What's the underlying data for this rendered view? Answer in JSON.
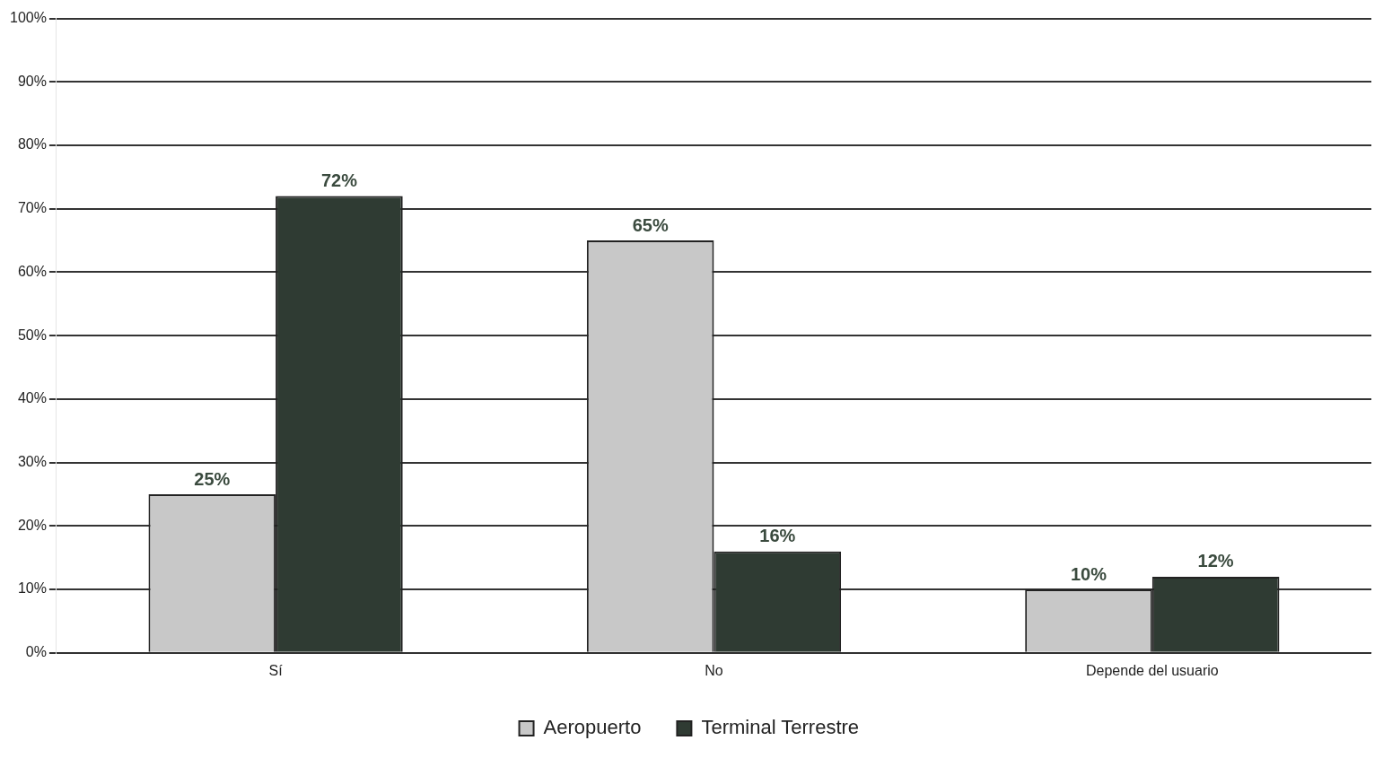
{
  "chart_data": {
    "type": "bar",
    "categories": [
      "Sí",
      "No",
      "Depende del usuario"
    ],
    "series": [
      {
        "name": "Aeropuerto",
        "color": "#c8c8c8",
        "values": [
          25,
          65,
          10
        ],
        "value_labels": [
          "25%",
          "65%",
          "10%"
        ]
      },
      {
        "name": "Terminal Terrestre",
        "color": "#2f3b33",
        "values": [
          72,
          16,
          12
        ],
        "value_labels": [
          "72%",
          "16%",
          "12%"
        ]
      }
    ],
    "ylim": [
      0,
      100
    ],
    "yticks": [
      {
        "value": 0,
        "label": "0%"
      },
      {
        "value": 10,
        "label": "10%"
      },
      {
        "value": 20,
        "label": "20%"
      },
      {
        "value": 30,
        "label": "30%"
      },
      {
        "value": 40,
        "label": "40%"
      },
      {
        "value": 50,
        "label": "50%"
      },
      {
        "value": 60,
        "label": "60%"
      },
      {
        "value": 70,
        "label": "70%"
      },
      {
        "value": 80,
        "label": "80%"
      },
      {
        "value": 90,
        "label": "90%"
      },
      {
        "value": 100,
        "label": "100%"
      }
    ],
    "grid": "y",
    "legend": "bottom"
  }
}
